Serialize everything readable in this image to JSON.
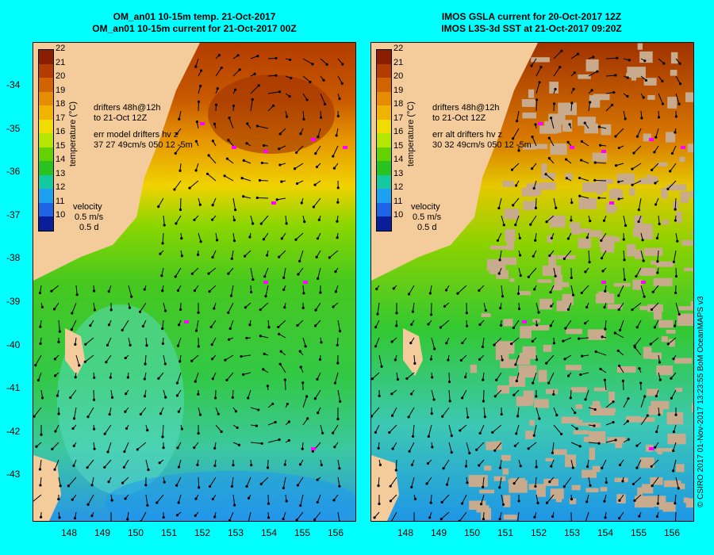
{
  "left_panel": {
    "title_line1": "OM_an01 10-15m temp. 21-Oct-2017",
    "title_line2": "OM_an01 10-15m current for 21-Oct-2017 00Z",
    "note_drifters": "drifters 48h@12h\nto 21-Oct 12Z",
    "note_err": "err model drifters hv z\n37 27 49cm/s 050 12 -5m"
  },
  "right_panel": {
    "title_line1": "IMOS GSLA current for 20-Oct-2017 12Z",
    "title_line2": "IMOS L3S-3d SST at 21-Oct-2017 09:20Z",
    "note_drifters": "drifters 48h@12h\nto 21-Oct 12Z",
    "note_err": "err alt drifters hv z\n30 32 49cm/s 050 12 -5m"
  },
  "colorbar": {
    "title": "temperature (°C)",
    "ticks": [
      "22",
      "21",
      "20",
      "19",
      "18",
      "17",
      "16",
      "15",
      "14",
      "13",
      "12",
      "11",
      "10"
    ],
    "colors": [
      "#8c1e00",
      "#b43c00",
      "#d26400",
      "#e68c00",
      "#f0b400",
      "#f0dc00",
      "#b4e600",
      "#64d200",
      "#28c31e",
      "#14c8a0",
      "#1ea0f0",
      "#1e64e6",
      "#0a1e9a"
    ]
  },
  "velocity": {
    "label": "velocity",
    "scale1": "0.5 m/s",
    "scale2": "0.5 d"
  },
  "lat_labels": [
    "-34",
    "-35",
    "-36",
    "-37",
    "-38",
    "-39",
    "-40",
    "-41",
    "-42",
    "-43"
  ],
  "lon_labels": [
    "148",
    "149",
    "150",
    "151",
    "152",
    "153",
    "154",
    "155",
    "156"
  ],
  "credit": "© CSIRO 2017   01-Nov-2017 13:23:55 BoM OceanMAPS v3",
  "colors": {
    "background": "#00ffff",
    "land": "#f4cc9c",
    "drifters": "#ff00ff",
    "cloud_mask": "#c8aa8c"
  }
}
